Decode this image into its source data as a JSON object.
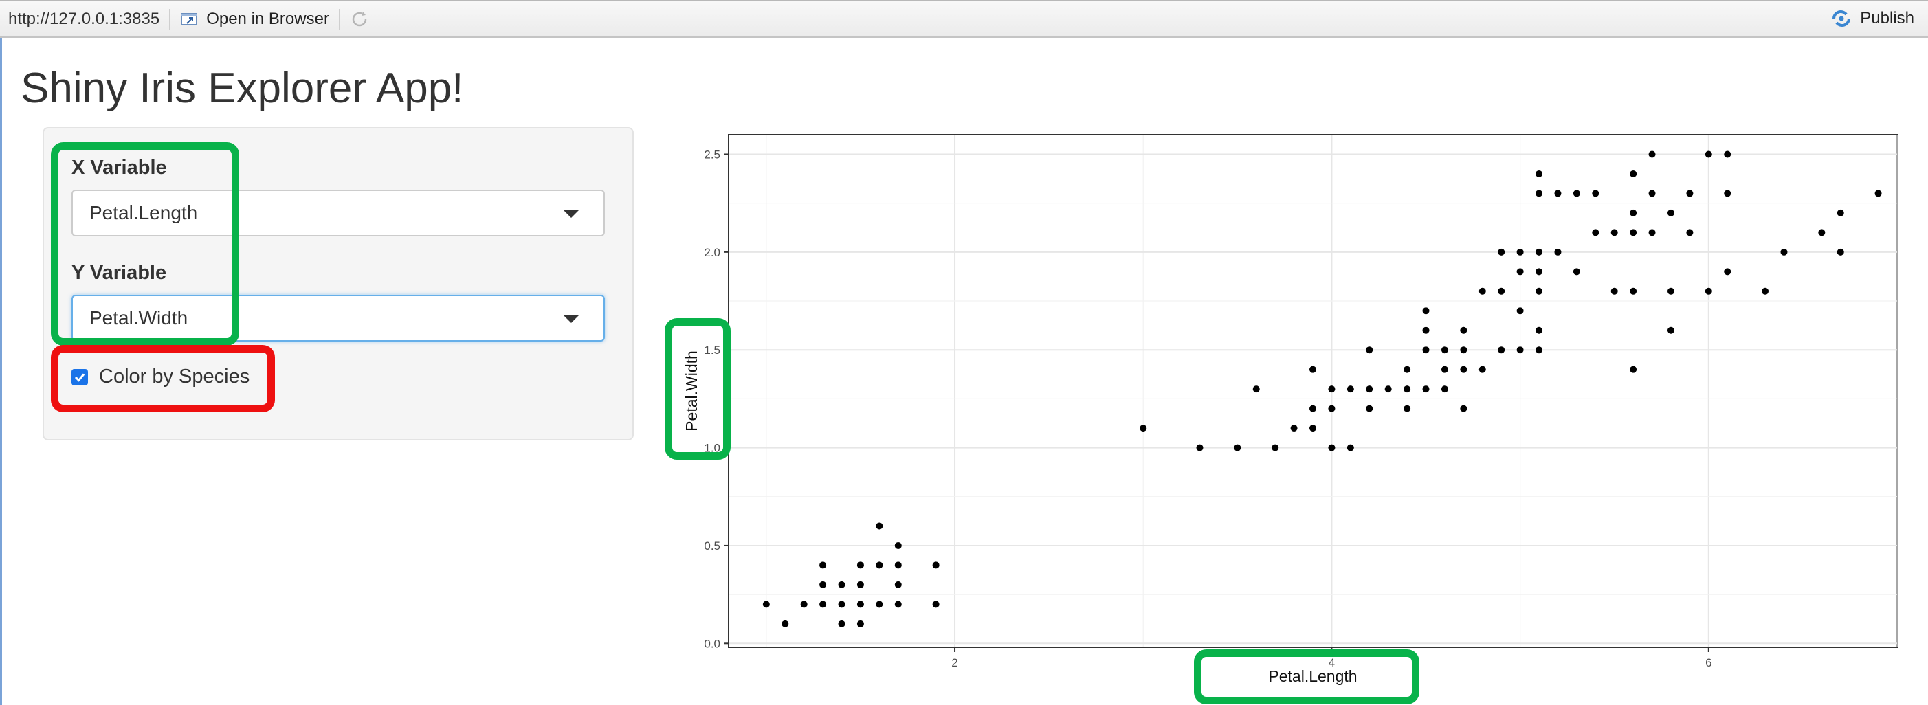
{
  "toolbar": {
    "url": "http://127.0.0.1:3835",
    "open_in_browser": "Open in Browser",
    "publish": "Publish"
  },
  "app": {
    "title": "Shiny Iris Explorer App!",
    "x_variable_label": "X Variable",
    "x_variable_value": "Petal.Length",
    "y_variable_label": "Y Variable",
    "y_variable_value": "Petal.Width",
    "color_checkbox_label": "Color by Species",
    "color_checkbox_checked": true
  },
  "colors": {
    "highlight_green": "#08b24a",
    "highlight_red": "#ee1010",
    "checkbox_blue": "#1a73e8",
    "points": "#000000"
  },
  "chart_data": {
    "type": "scatter",
    "xlabel": "Petal.Length",
    "ylabel": "Petal.Width",
    "xlim": [
      0.8,
      7.0
    ],
    "ylim": [
      -0.02,
      2.6
    ],
    "xticks": [
      2,
      4,
      6
    ],
    "yticks": [
      "0.0",
      "0.5",
      "1.0",
      "1.5",
      "2.0",
      "2.5"
    ],
    "grid": true,
    "points": [
      [
        1.0,
        0.2
      ],
      [
        1.1,
        0.1
      ],
      [
        1.2,
        0.2
      ],
      [
        1.3,
        0.4
      ],
      [
        1.3,
        0.3
      ],
      [
        1.3,
        0.2
      ],
      [
        1.4,
        0.3
      ],
      [
        1.4,
        0.2
      ],
      [
        1.4,
        0.1
      ],
      [
        1.5,
        0.4
      ],
      [
        1.5,
        0.3
      ],
      [
        1.5,
        0.2
      ],
      [
        1.5,
        0.1
      ],
      [
        1.6,
        0.6
      ],
      [
        1.6,
        0.4
      ],
      [
        1.6,
        0.2
      ],
      [
        1.7,
        0.5
      ],
      [
        1.7,
        0.4
      ],
      [
        1.7,
        0.3
      ],
      [
        1.7,
        0.2
      ],
      [
        1.9,
        0.4
      ],
      [
        1.9,
        0.2
      ],
      [
        3.0,
        1.1
      ],
      [
        3.3,
        1.0
      ],
      [
        3.5,
        1.0
      ],
      [
        3.6,
        1.3
      ],
      [
        3.7,
        1.0
      ],
      [
        3.8,
        1.1
      ],
      [
        3.9,
        1.4
      ],
      [
        3.9,
        1.2
      ],
      [
        3.9,
        1.1
      ],
      [
        4.0,
        1.3
      ],
      [
        4.0,
        1.2
      ],
      [
        4.0,
        1.0
      ],
      [
        4.1,
        1.3
      ],
      [
        4.1,
        1.0
      ],
      [
        4.2,
        1.3
      ],
      [
        4.2,
        1.2
      ],
      [
        4.2,
        1.5
      ],
      [
        4.3,
        1.3
      ],
      [
        4.4,
        1.4
      ],
      [
        4.4,
        1.3
      ],
      [
        4.4,
        1.2
      ],
      [
        4.5,
        1.7
      ],
      [
        4.5,
        1.6
      ],
      [
        4.5,
        1.5
      ],
      [
        4.5,
        1.3
      ],
      [
        4.6,
        1.5
      ],
      [
        4.6,
        1.4
      ],
      [
        4.6,
        1.3
      ],
      [
        4.7,
        1.6
      ],
      [
        4.7,
        1.5
      ],
      [
        4.7,
        1.4
      ],
      [
        4.7,
        1.2
      ],
      [
        4.8,
        1.8
      ],
      [
        4.8,
        1.4
      ],
      [
        4.9,
        2.0
      ],
      [
        4.9,
        1.8
      ],
      [
        4.9,
        1.5
      ],
      [
        5.0,
        2.0
      ],
      [
        5.0,
        1.9
      ],
      [
        5.0,
        1.7
      ],
      [
        5.0,
        1.5
      ],
      [
        5.1,
        2.4
      ],
      [
        5.1,
        2.3
      ],
      [
        5.1,
        2.0
      ],
      [
        5.1,
        1.9
      ],
      [
        5.1,
        1.8
      ],
      [
        5.1,
        1.6
      ],
      [
        5.1,
        1.5
      ],
      [
        5.2,
        2.3
      ],
      [
        5.2,
        2.0
      ],
      [
        5.3,
        2.3
      ],
      [
        5.3,
        1.9
      ],
      [
        5.4,
        2.3
      ],
      [
        5.4,
        2.1
      ],
      [
        5.5,
        2.1
      ],
      [
        5.5,
        1.8
      ],
      [
        5.6,
        2.4
      ],
      [
        5.6,
        2.2
      ],
      [
        5.6,
        2.1
      ],
      [
        5.6,
        1.8
      ],
      [
        5.6,
        1.4
      ],
      [
        5.7,
        2.5
      ],
      [
        5.7,
        2.3
      ],
      [
        5.7,
        2.1
      ],
      [
        5.8,
        2.2
      ],
      [
        5.8,
        1.8
      ],
      [
        5.8,
        1.6
      ],
      [
        5.9,
        2.3
      ],
      [
        5.9,
        2.1
      ],
      [
        6.0,
        2.5
      ],
      [
        6.0,
        1.8
      ],
      [
        6.1,
        2.5
      ],
      [
        6.1,
        2.3
      ],
      [
        6.1,
        1.9
      ],
      [
        6.3,
        1.8
      ],
      [
        6.4,
        2.0
      ],
      [
        6.6,
        2.1
      ],
      [
        6.7,
        2.2
      ],
      [
        6.7,
        2.0
      ],
      [
        6.9,
        2.3
      ]
    ]
  }
}
